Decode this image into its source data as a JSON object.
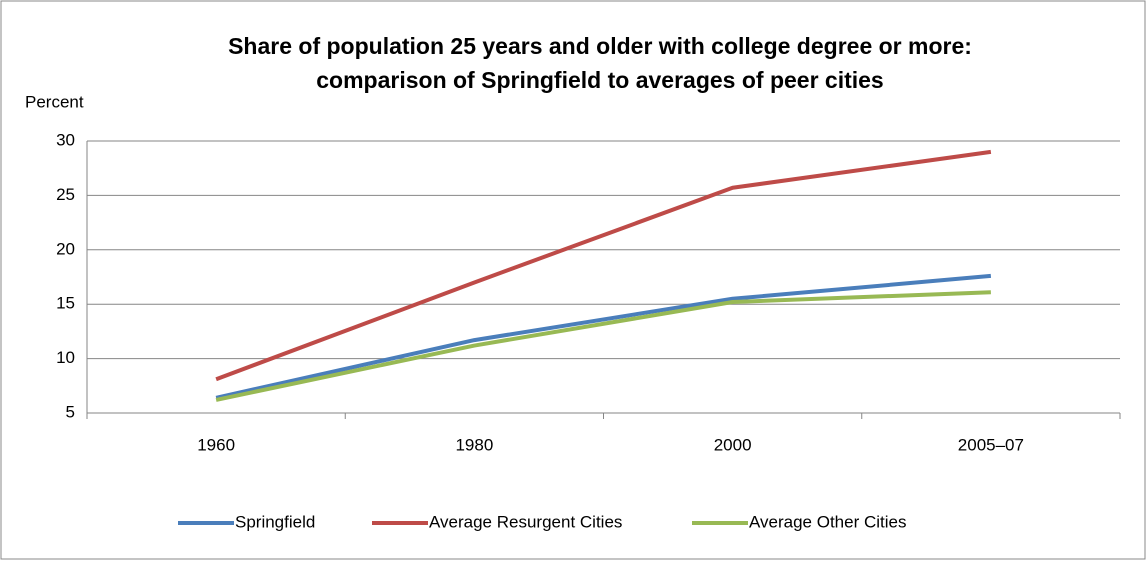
{
  "chart_data": {
    "type": "line",
    "title": [
      "Share of population 25 years and older with college degree or more:",
      "comparison of Springfield to averages of peer cities"
    ],
    "y_label": "Percent",
    "categories": [
      "1960",
      "1980",
      "2000",
      "2005–07"
    ],
    "series": [
      {
        "name": "Springfield",
        "color": "#4a7ebb",
        "values": [
          6.4,
          11.7,
          15.5,
          17.6
        ]
      },
      {
        "name": "Average Resurgent Cities",
        "color": "#be4b48",
        "values": [
          8.1,
          17.0,
          25.7,
          29.0
        ]
      },
      {
        "name": "Average Other Cities",
        "color": "#98b954",
        "values": [
          6.2,
          11.2,
          15.2,
          16.1
        ]
      }
    ],
    "ylim": [
      5,
      30
    ],
    "yticks": [
      5,
      10,
      15,
      20,
      25,
      30
    ],
    "grid": true,
    "legend": "bottom"
  }
}
